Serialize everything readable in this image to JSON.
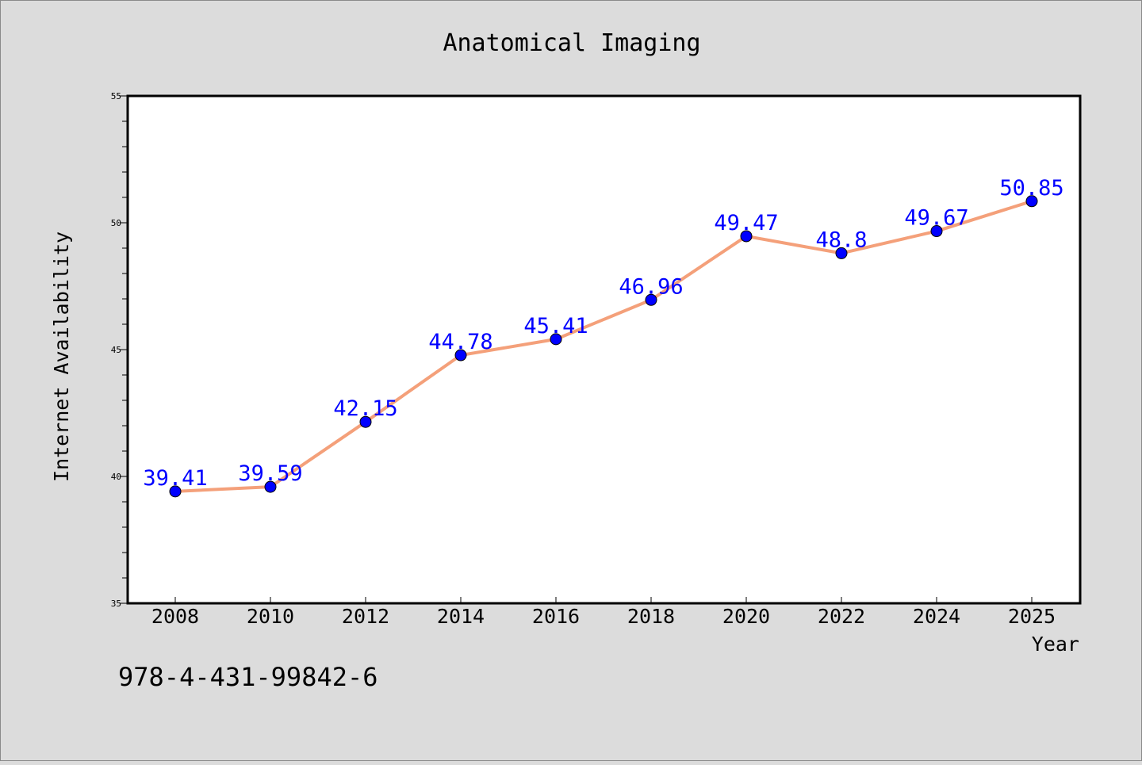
{
  "chart_data": {
    "type": "line",
    "title": "Anatomical Imaging",
    "xlabel": "Year",
    "ylabel": "Internet Availability",
    "categories": [
      "2008",
      "2010",
      "2012",
      "2014",
      "2016",
      "2018",
      "2020",
      "2022",
      "2024",
      "2025"
    ],
    "series": [
      {
        "values": [
          39.41,
          39.59,
          42.15,
          44.78,
          45.41,
          46.96,
          49.47,
          48.8,
          49.67,
          50.85
        ],
        "labels": [
          "39.41",
          "39.59",
          "42.15",
          "44.78",
          "45.41",
          "46.96",
          "49.47",
          "48.8",
          "49.67",
          "50.85"
        ]
      }
    ],
    "ylim": [
      35,
      55
    ],
    "y_ticks": [
      "35",
      "40",
      "45",
      "50",
      "55"
    ],
    "grid": false,
    "line_color": "#f4a07a",
    "marker_color": "#0000ff",
    "label_color": "#0000ff",
    "annotation": "978-4-431-99842-6"
  }
}
